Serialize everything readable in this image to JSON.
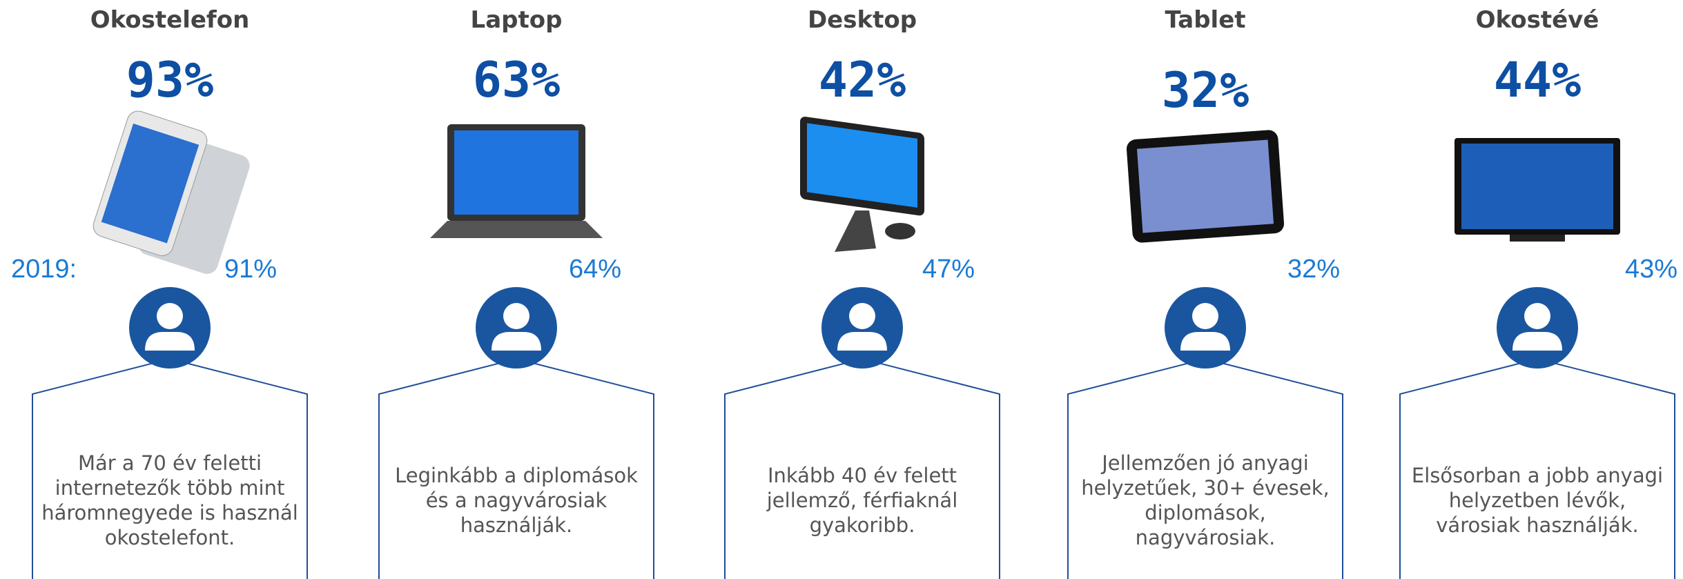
{
  "year_label": "2019:",
  "devices": [
    {
      "name": "Okostelefon",
      "share": "93%",
      "share_2019": "91%",
      "description": [
        "Már a 70 év feletti",
        "internetezők több mint",
        "háromnegyede is használ",
        "okostelefont."
      ]
    },
    {
      "name": "Laptop",
      "share": "63%",
      "share_2019": "64%",
      "description": [
        "Leginkább a diplomások",
        "és a nagyvárosiak",
        "használják."
      ]
    },
    {
      "name": "Desktop",
      "share": "42%",
      "share_2019": "47%",
      "description": [
        "Inkább 40 év felett",
        "jellemző, férfiaknál",
        "gyakoribb."
      ]
    },
    {
      "name": "Tablet",
      "share": "32%",
      "share_2019": "32%",
      "description": [
        "Jellemzően jó anyagi",
        "helyzetűek, 30+ évesek,",
        "diplomások,",
        "nagyvárosiak."
      ]
    },
    {
      "name": "Okostévé",
      "share": "44%",
      "share_2019": "43%",
      "description": [
        "Elsősorban a jobb anyagi",
        "helyzetben lévők,",
        "városiak használják."
      ]
    }
  ]
}
